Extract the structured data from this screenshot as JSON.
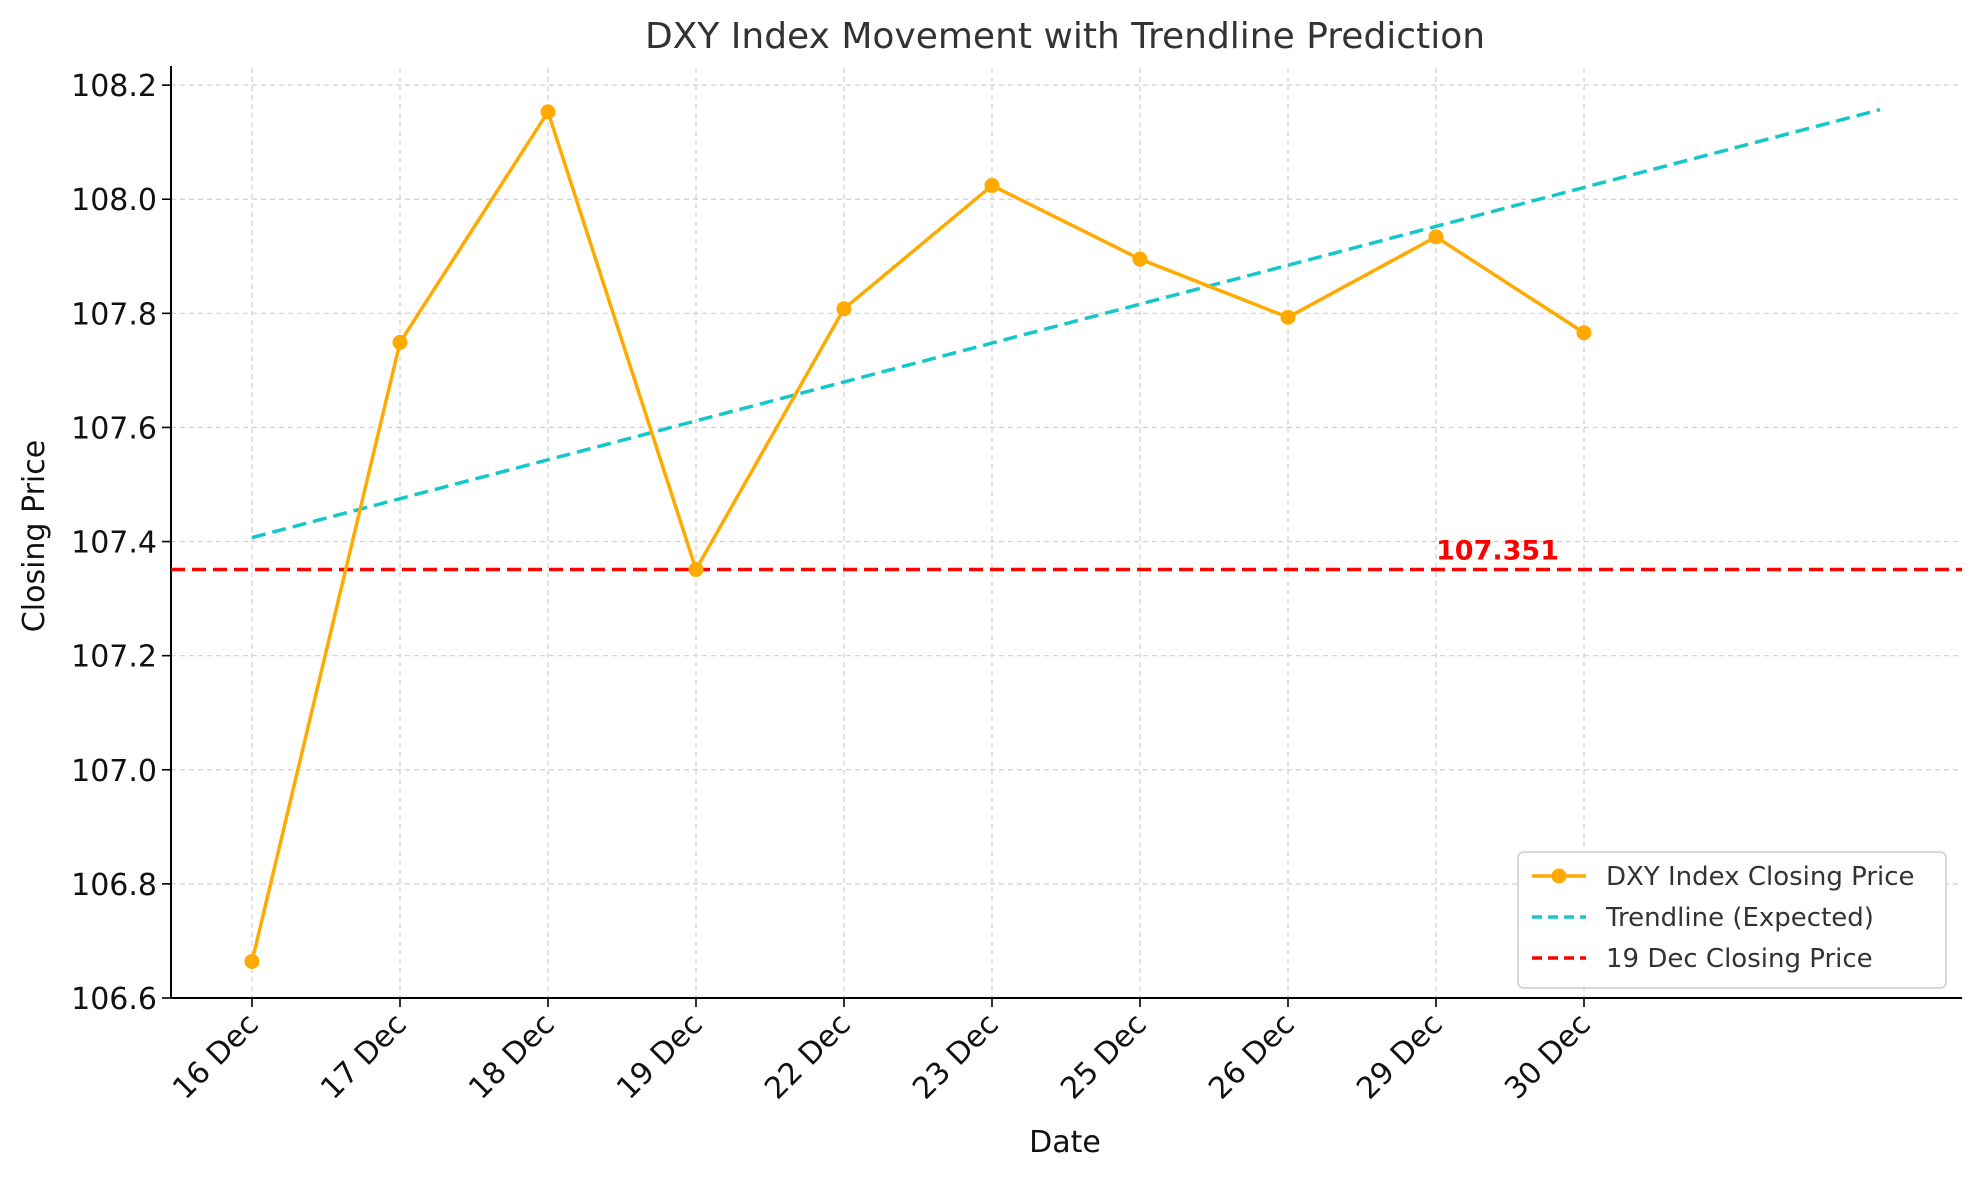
{
  "colors": {
    "series": "#FFAA00",
    "trendline": "#14C8C8",
    "reference": "#FF0000",
    "grid": "#d0d0d0",
    "axis": "#000000",
    "text": "#333333"
  },
  "chart_data": {
    "type": "line",
    "title": "DXY Index Movement with Trendline Prediction",
    "xlabel": "Date",
    "ylabel": "Closing Price",
    "categories": [
      "16 Dec",
      "17 Dec",
      "18 Dec",
      "19 Dec",
      "22 Dec",
      "23 Dec",
      "25 Dec",
      "26 Dec",
      "29 Dec",
      "30 Dec"
    ],
    "ylim": [
      106.6,
      108.23
    ],
    "yticks": [
      "106.6",
      "106.8",
      "107.0",
      "107.2",
      "107.4",
      "107.6",
      "107.8",
      "108.0",
      "108.2"
    ],
    "grid": true,
    "legend_position": "bottom-right",
    "series": [
      {
        "name": "DXY Index Closing Price",
        "style": "solid-with-markers",
        "values": [
          106.664,
          107.749,
          108.153,
          107.351,
          107.808,
          108.024,
          107.895,
          107.793,
          107.934,
          107.766
        ]
      },
      {
        "name": "Trendline (Expected)",
        "style": "dashed",
        "start": {
          "x_index": 0,
          "value": 107.407
        },
        "end": {
          "x_index": 11,
          "value": 108.157
        }
      },
      {
        "name": "19 Dec Closing Price",
        "style": "dashed-horizontal",
        "value": 107.351
      }
    ],
    "annotations": [
      {
        "text": "107.351",
        "at_x_index": 8,
        "value": 107.351
      }
    ]
  }
}
